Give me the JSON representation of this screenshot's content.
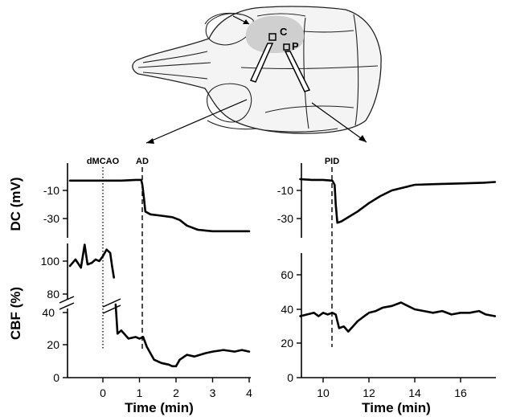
{
  "figure": {
    "skull_labels": {
      "c": "C",
      "p": "P"
    }
  },
  "chart_data": [
    {
      "type": "line",
      "panel": "left-top",
      "ylabel": "DC (mV)",
      "xlim": [
        -0.9,
        4.05
      ],
      "ylim": [
        -50,
        2
      ],
      "yticks": [
        -10,
        -30
      ],
      "annotations": [
        {
          "text": "dMCAO",
          "x": 0.0,
          "style": "dotted"
        },
        {
          "text": "AD",
          "x": 1.1,
          "style": "dashed"
        }
      ],
      "series": [
        {
          "x": [
            -0.9,
            -0.5,
            0,
            0.5,
            0.9,
            1.05,
            1.08,
            1.12,
            1.16,
            1.3,
            1.6,
            1.9,
            2.1,
            2.3,
            2.6,
            3.0,
            3.5,
            4.0
          ],
          "y": [
            -3,
            -3,
            -3,
            -3,
            -2.5,
            -2.5,
            -6,
            -15,
            -25,
            -27,
            -28,
            -29,
            -31,
            -35,
            -38,
            -39,
            -39,
            -39
          ]
        }
      ]
    },
    {
      "type": "line",
      "panel": "left-bottom",
      "ylabel": "CBF (%)",
      "xlabel": "Time (min)",
      "xlim": [
        -0.9,
        4.05
      ],
      "ylim": [
        0,
        115
      ],
      "yticks_upper": [
        100,
        80
      ],
      "yticks_lower": [
        40,
        20,
        0
      ],
      "xticks": [
        0,
        1,
        2,
        3,
        4
      ],
      "series": [
        {
          "x": [
            -0.9,
            -0.75,
            -0.6,
            -0.5,
            -0.42,
            -0.3,
            -0.2,
            -0.1,
            0,
            0.1,
            0.2,
            0.25,
            0.3,
            0.35,
            0.4,
            0.5,
            0.7,
            0.9,
            1.0,
            1.1,
            1.2,
            1.4,
            1.6,
            1.8,
            1.9,
            2.0,
            2.1,
            2.3,
            2.5,
            2.8,
            3.0,
            3.3,
            3.6,
            3.8,
            4.0
          ],
          "y": [
            97,
            101,
            96,
            110,
            98,
            99,
            101,
            100,
            103,
            107,
            105,
            97,
            90,
            45,
            27,
            29,
            24,
            25,
            24,
            25,
            19,
            11,
            9,
            8,
            7,
            7,
            11,
            14,
            13,
            15,
            16,
            17,
            16,
            17,
            16
          ]
        }
      ]
    },
    {
      "type": "line",
      "panel": "right-top",
      "xlim": [
        9.0,
        17.55
      ],
      "ylim": [
        -50,
        2
      ],
      "yticks": [
        -10,
        -30
      ],
      "annotations": [
        {
          "text": "PID",
          "x": 10.4,
          "style": "dashed"
        }
      ],
      "series": [
        {
          "x": [
            9.0,
            9.5,
            10.0,
            10.4,
            10.5,
            10.55,
            10.62,
            10.8,
            11.0,
            11.5,
            12.0,
            12.5,
            13.0,
            13.5,
            14.0,
            15.0,
            16.0,
            17.0,
            17.5
          ],
          "y": [
            -2,
            -2.5,
            -2.5,
            -3,
            -6,
            -20,
            -33,
            -32,
            -30,
            -25,
            -19,
            -14,
            -10,
            -8,
            -6,
            -5.5,
            -5,
            -4.5,
            -4
          ]
        }
      ]
    },
    {
      "type": "line",
      "panel": "right-bottom",
      "xlabel": "Time (min)",
      "xlim": [
        9.0,
        17.55
      ],
      "ylim": [
        0,
        70
      ],
      "yticks": [
        60,
        40,
        20,
        0
      ],
      "xticks": [
        10,
        12,
        14,
        16
      ],
      "series": [
        {
          "x": [
            9.0,
            9.3,
            9.6,
            9.8,
            10.0,
            10.2,
            10.4,
            10.55,
            10.7,
            10.9,
            11.1,
            11.3,
            11.5,
            11.7,
            12.0,
            12.3,
            12.6,
            13.0,
            13.4,
            13.7,
            14.0,
            14.4,
            14.8,
            15.2,
            15.6,
            16.0,
            16.4,
            16.8,
            17.1,
            17.5
          ],
          "y": [
            36,
            37,
            38,
            36,
            38,
            37,
            38,
            37,
            29,
            30,
            27,
            30,
            33,
            35,
            38,
            39,
            41,
            42,
            44,
            42,
            40,
            39,
            38,
            39,
            37,
            38,
            38,
            39,
            37,
            36
          ]
        }
      ]
    }
  ]
}
